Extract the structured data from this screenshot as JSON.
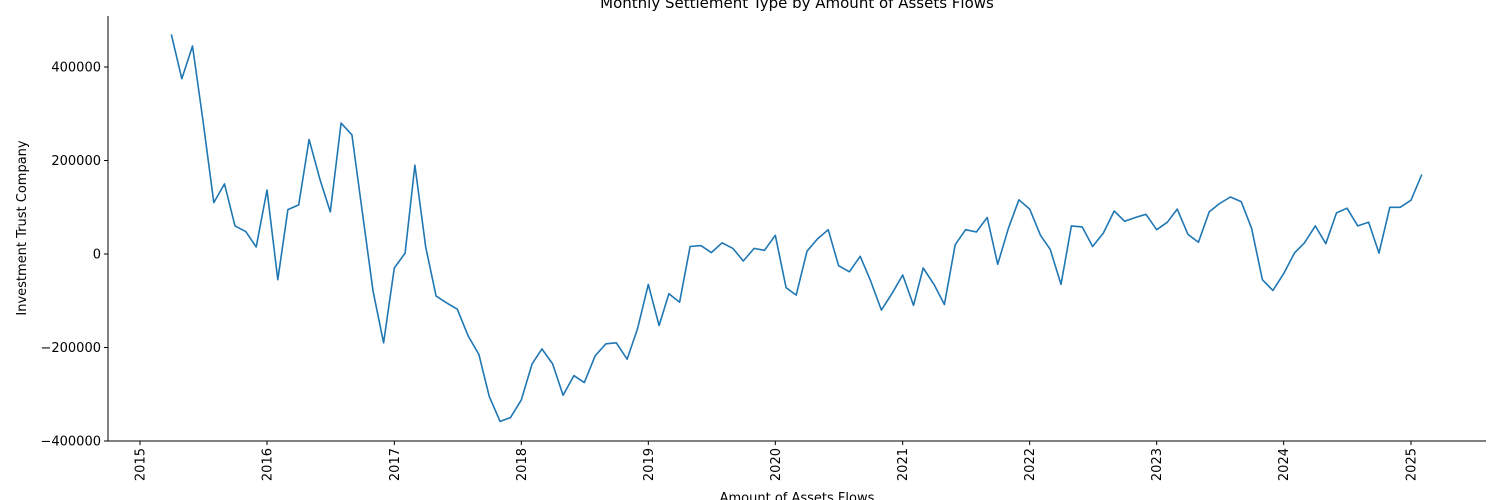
{
  "chart_data": {
    "type": "line",
    "title": "Monthly Settlement Type by Amount of Assets Flows",
    "xlabel": "Amount of Assets Flows",
    "ylabel": "Investment Trust Company",
    "xlim": [
      "2014-11-01",
      "2025-07-01"
    ],
    "ylim": [
      -400000,
      510000
    ],
    "yticks": [
      -400000,
      -200000,
      0,
      200000,
      400000
    ],
    "ytick_labels": [
      "−400000",
      "−200000",
      "0",
      "200000",
      "400000"
    ],
    "xticks": [
      "2015-01-01",
      "2016-01-01",
      "2017-01-01",
      "2018-01-01",
      "2019-01-01",
      "2020-01-01",
      "2021-01-01",
      "2022-01-01",
      "2023-01-01",
      "2024-01-01",
      "2025-01-01"
    ],
    "xtick_labels": [
      "2015",
      "2016",
      "2017",
      "2018",
      "2019",
      "2020",
      "2021",
      "2022",
      "2023",
      "2024",
      "2025"
    ],
    "grid": false,
    "series": [
      {
        "color": "#1f77b4",
        "start": "2015-04",
        "values": [
          470000,
          375000,
          445000,
          285000,
          110000,
          150000,
          60000,
          48000,
          15000,
          137000,
          -55000,
          95000,
          105000,
          245000,
          160000,
          90000,
          280000,
          255000,
          90000,
          -80000,
          -190000,
          -30000,
          2000,
          190000,
          15000,
          -90000,
          -105000,
          -118000,
          -175000,
          -215000,
          -305000,
          -358000,
          -350000,
          -312000,
          -235000,
          -203000,
          -235000,
          -302000,
          -260000,
          -275000,
          -218000,
          -192000,
          -190000,
          -225000,
          -160000,
          -65000,
          -153000,
          -85000,
          -103000,
          16000,
          18000,
          3000,
          24000,
          12000,
          -15000,
          12000,
          8000,
          40000,
          -72000,
          -88000,
          6000,
          32000,
          52000,
          -25000,
          -38000,
          -5000,
          -58000,
          -120000,
          -85000,
          -45000,
          -110000,
          -30000,
          -65000,
          -108000,
          20000,
          52000,
          47000,
          78000,
          -22000,
          55000,
          116000,
          96000,
          40000,
          10000,
          -65000,
          60000,
          58000,
          16000,
          45000,
          92000,
          70000,
          78000,
          85000,
          52000,
          68000,
          96000,
          42000,
          25000,
          90000,
          108000,
          122000,
          112000,
          55000,
          -55000,
          -78000,
          -42000,
          2000,
          24000,
          60000,
          22000,
          88000,
          98000,
          60000,
          68000,
          2000,
          100000,
          100000,
          115000,
          170000
        ]
      }
    ]
  }
}
